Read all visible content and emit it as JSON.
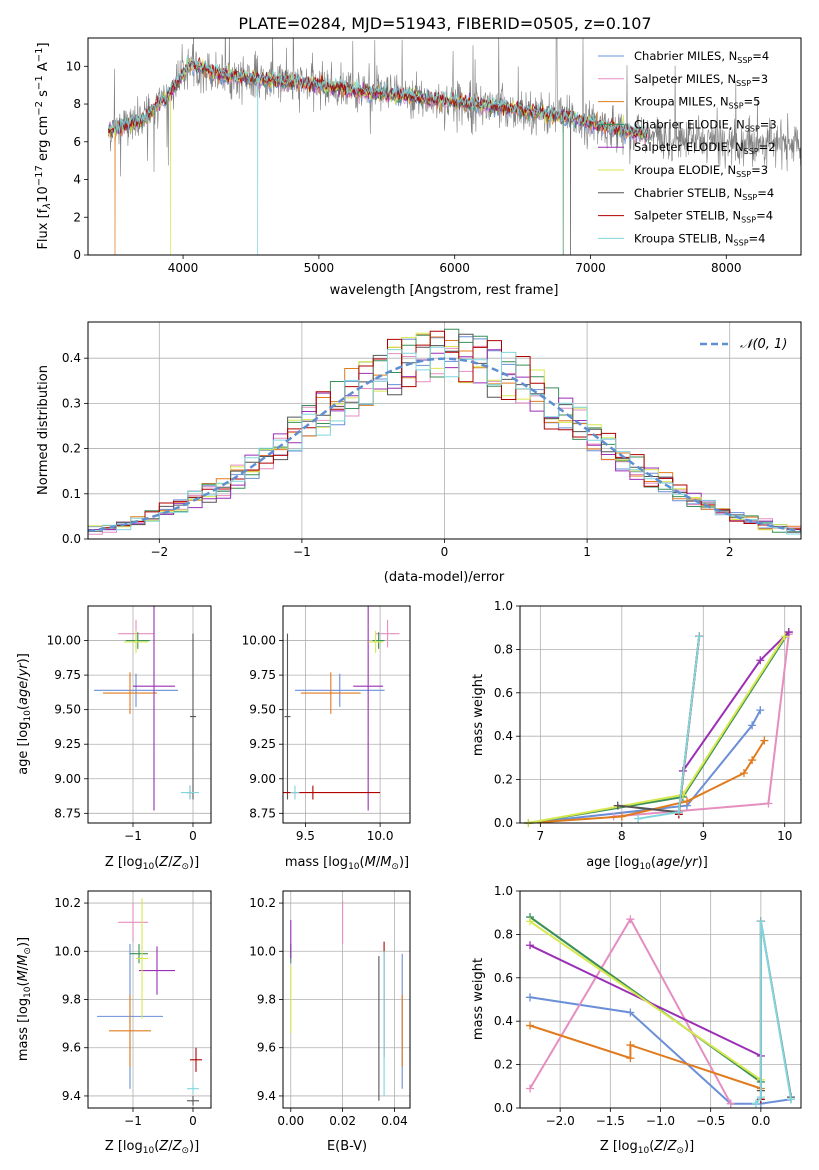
{
  "figure_title": "PLATE=0284, MJD=51943, FIBERID=0505, z=0.107",
  "colors": {
    "c1": "#6a8fd8",
    "c2": "#e58ec0",
    "c3": "#e07b1f",
    "c4": "#3a8f5a",
    "c5": "#9b2fb5",
    "c6": "#d7e84f",
    "c7": "#555555",
    "c8": "#b00000",
    "c9": "#7fd6dc",
    "data": "#808080",
    "normal": "#5f8fd0"
  },
  "legend_labels": {
    "s1": "Chabrier MILES, N",
    "s2": "Salpeter MILES, N",
    "s3": "Kroupa MILES, N",
    "s4": "Chabrier ELODIE, N",
    "s5": "Salpeter ELODIE, N",
    "s6": "Kroupa ELODIE, N",
    "s7": "Chabrier STELIB, N",
    "s8": "Salpeter STELIB, N",
    "s9": "Kroupa STELIB, N",
    "sub": "SSP",
    "n": [
      "=4",
      "=3",
      "=5",
      "=3",
      "=2",
      "=3",
      "=4",
      "=4",
      "=4"
    ]
  },
  "chart_data": [
    {
      "type": "line",
      "xlabel": "wavelength [Angstrom, rest frame]",
      "ylabel": "Flux [f_λ 10^-17 erg cm^-2 s^-1 A^-1]",
      "xlim": [
        3300,
        8550
      ],
      "ylim": [
        0,
        11.5
      ],
      "xticks": [
        "4000",
        "5000",
        "6000",
        "7000",
        "8000"
      ],
      "yticks": [
        "0",
        "2",
        "4",
        "6",
        "8",
        "10"
      ],
      "spectrum_shape": [
        [
          3450,
          6.6
        ],
        [
          3700,
          7.1
        ],
        [
          3900,
          8.6
        ],
        [
          4050,
          10.1
        ],
        [
          4300,
          9.5
        ],
        [
          4600,
          9.3
        ],
        [
          5000,
          9.0
        ],
        [
          5500,
          8.5
        ],
        [
          6000,
          8.1
        ],
        [
          6500,
          7.7
        ],
        [
          7000,
          7.0
        ],
        [
          7500,
          6.2
        ],
        [
          8000,
          6.0
        ],
        [
          8550,
          5.9
        ]
      ],
      "data_extends_to": 8550,
      "model_extends_to": 7420
    },
    {
      "type": "step",
      "xlabel": "(data-model)/error",
      "ylabel": "Normed distribution",
      "xlim": [
        -2.5,
        2.5
      ],
      "ylim": [
        0,
        0.48
      ],
      "xticks": [
        "−2",
        "−1",
        "0",
        "1",
        "2"
      ],
      "yticks": [
        "0.0",
        "0.1",
        "0.2",
        "0.3",
        "0.4"
      ],
      "legend": "𝒩(0, 1)",
      "bin_width": 0.1
    },
    {
      "type": "errorbar",
      "xlabel": "Z [log10(Z/Z⊙)]",
      "ylabel": "age  [log10(age/yr)]",
      "xlim": [
        -1.75,
        0.3
      ],
      "ylim": [
        8.68,
        10.25
      ],
      "xticks": [
        "−1",
        "0"
      ],
      "yticks": [
        "8.75",
        "9.00",
        "9.25",
        "9.50",
        "9.75",
        "10.00"
      ],
      "points": [
        {
          "c": "c1",
          "x": -0.95,
          "xe": 0.7,
          "y": 9.64,
          "ye": 0.12
        },
        {
          "c": "c2",
          "x": -0.95,
          "xe": 0.3,
          "y": 10.05,
          "ye": 0.1
        },
        {
          "c": "c3",
          "x": -1.05,
          "xe": 0.45,
          "y": 9.62,
          "ye": 0.15
        },
        {
          "c": "c4",
          "x": -0.92,
          "xe": 0.2,
          "y": 10.0,
          "ye": 0.06
        },
        {
          "c": "c5",
          "x": -0.65,
          "xe": 0.35,
          "y": 9.67,
          "ye": 0.9
        },
        {
          "c": "c6",
          "x": -0.95,
          "xe": 0.2,
          "y": 9.99,
          "ye": 0.08
        },
        {
          "c": "c7",
          "x": 0.0,
          "xe": 0.05,
          "y": 9.45,
          "ye": 0.6
        },
        {
          "c": "c8",
          "x": -0.05,
          "xe": 0.06,
          "y": 8.9,
          "ye": 0.05
        },
        {
          "c": "c9",
          "x": -0.05,
          "xe": 0.15,
          "y": 8.9,
          "ye": 0.05
        }
      ]
    },
    {
      "type": "errorbar",
      "xlabel": "mass [log10(M/M⊙)]",
      "ylabel": "",
      "xlim": [
        9.35,
        10.2
      ],
      "ylim": [
        8.68,
        10.25
      ],
      "xticks": [
        "9.5",
        "10.0"
      ],
      "yticks": [
        "8.75",
        "9.00",
        "9.25",
        "9.50",
        "9.75",
        "10.00"
      ],
      "points": [
        {
          "c": "c1",
          "x": 9.73,
          "xe": 0.3,
          "y": 9.64,
          "ye": 0.12
        },
        {
          "c": "c2",
          "x": 10.05,
          "xe": 0.08,
          "y": 10.05,
          "ye": 0.1
        },
        {
          "c": "c3",
          "x": 9.67,
          "xe": 0.2,
          "y": 9.62,
          "ye": 0.15
        },
        {
          "c": "c4",
          "x": 9.99,
          "xe": 0.04,
          "y": 10.0,
          "ye": 0.06
        },
        {
          "c": "c5",
          "x": 9.92,
          "xe": 0.1,
          "y": 9.67,
          "ye": 0.9
        },
        {
          "c": "c6",
          "x": 9.97,
          "xe": 0.05,
          "y": 9.99,
          "ye": 0.08
        },
        {
          "c": "c7",
          "x": 9.38,
          "xe": 0.02,
          "y": 9.45,
          "ye": 0.6
        },
        {
          "c": "c8",
          "x": 9.55,
          "xe": 0.45,
          "y": 8.9,
          "ye": 0.05
        },
        {
          "c": "c9",
          "x": 9.43,
          "xe": 0.03,
          "y": 8.9,
          "ye": 0.05
        }
      ]
    },
    {
      "type": "line",
      "xlabel": "age  [log10(age/yr)]",
      "ylabel": "mass weight",
      "xlim": [
        6.75,
        10.2
      ],
      "ylim": [
        0,
        1
      ],
      "xticks": [
        "7",
        "8",
        "9",
        "10"
      ],
      "yticks": [
        "0.0",
        "0.2",
        "0.4",
        "0.6",
        "0.8",
        "1.0"
      ],
      "series": [
        {
          "c": "c1",
          "x": [
            6.85,
            8.8,
            9.6,
            9.7
          ],
          "y": [
            0.0,
            0.08,
            0.45,
            0.52
          ]
        },
        {
          "c": "c2",
          "x": [
            7.9,
            9.8,
            10.05
          ],
          "y": [
            0.03,
            0.09,
            0.87
          ]
        },
        {
          "c": "c3",
          "x": [
            6.85,
            8.0,
            8.8,
            9.5,
            9.6,
            9.75
          ],
          "y": [
            0.0,
            0.03,
            0.1,
            0.23,
            0.29,
            0.38
          ]
        },
        {
          "c": "c4",
          "x": [
            6.85,
            8.75,
            10.05
          ],
          "y": [
            0.0,
            0.12,
            0.88
          ]
        },
        {
          "c": "c5",
          "x": [
            8.75,
            9.7,
            10.05
          ],
          "y": [
            0.24,
            0.75,
            0.88
          ]
        },
        {
          "c": "c6",
          "x": [
            6.85,
            8.75,
            10.0
          ],
          "y": [
            0.0,
            0.13,
            0.86
          ]
        },
        {
          "c": "c7",
          "x": [
            7.95,
            8.7,
            8.95
          ],
          "y": [
            0.08,
            0.05,
            0.86
          ]
        },
        {
          "c": "c8",
          "x": [
            8.7,
            8.95
          ],
          "y": [
            0.04,
            0.86
          ]
        },
        {
          "c": "c9",
          "x": [
            8.2,
            8.7,
            8.95
          ],
          "y": [
            0.02,
            0.05,
            0.86
          ]
        }
      ]
    },
    {
      "type": "errorbar",
      "xlabel": "Z [log10(Z/Z⊙)]",
      "ylabel": "mass [log10(M/M⊙)]",
      "xlim": [
        -1.75,
        0.3
      ],
      "ylim": [
        9.35,
        10.25
      ],
      "xticks": [
        "−1",
        "0"
      ],
      "yticks": [
        "9.4",
        "9.6",
        "9.8",
        "10.0",
        "10.2"
      ],
      "points": [
        {
          "c": "c1",
          "x": -1.05,
          "xe": 0.55,
          "y": 9.73,
          "ye": 0.3
        },
        {
          "c": "c2",
          "x": -1.0,
          "xe": 0.25,
          "y": 10.12,
          "ye": 0.08
        },
        {
          "c": "c3",
          "x": -1.05,
          "xe": 0.35,
          "y": 9.67,
          "ye": 0.15
        },
        {
          "c": "c4",
          "x": -0.9,
          "xe": 0.15,
          "y": 9.99,
          "ye": 0.04
        },
        {
          "c": "c5",
          "x": -0.6,
          "xe": 0.3,
          "y": 9.92,
          "ye": 0.1
        },
        {
          "c": "c6",
          "x": -0.85,
          "xe": 0.1,
          "y": 9.97,
          "ye": 0.25
        },
        {
          "c": "c7",
          "x": 0.0,
          "xe": 0.1,
          "y": 9.38,
          "ye": 0.02
        },
        {
          "c": "c8",
          "x": 0.05,
          "xe": 0.1,
          "y": 9.55,
          "ye": 0.05
        },
        {
          "c": "c9",
          "x": 0.0,
          "xe": 0.1,
          "y": 9.43,
          "ye": 0.02
        }
      ]
    },
    {
      "type": "errorbar",
      "xlabel": "E(B-V)",
      "ylabel": "",
      "xlim": [
        -0.003,
        0.046
      ],
      "ylim": [
        9.35,
        10.25
      ],
      "xticks": [
        "0.00",
        "0.02",
        "0.04"
      ],
      "yticks": [
        "9.4",
        "9.6",
        "9.8",
        "10.0",
        "10.2"
      ],
      "points": [
        {
          "c": "c1",
          "x": 0.043,
          "xe": 0.0,
          "y": 9.71,
          "ye": 0.28
        },
        {
          "c": "c2",
          "x": 0.02,
          "xe": 0.0,
          "y": 10.12,
          "ye": 0.09
        },
        {
          "c": "c3",
          "x": 0.043,
          "xe": 0.0,
          "y": 9.67,
          "ye": 0.15
        },
        {
          "c": "c4",
          "x": 0.0,
          "xe": 0.0,
          "y": 9.99,
          "ye": 0.04
        },
        {
          "c": "c5",
          "x": 0.0,
          "xe": 0.0,
          "y": 10.05,
          "ye": 0.08
        },
        {
          "c": "c6",
          "x": 0.0,
          "xe": 0.0,
          "y": 9.8,
          "ye": 0.14
        },
        {
          "c": "c7",
          "x": 0.034,
          "xe": 0.0,
          "y": 9.68,
          "ye": 0.3
        },
        {
          "c": "c8",
          "x": 0.036,
          "xe": 0.0,
          "y": 9.8,
          "ye": 0.24
        },
        {
          "c": "c9",
          "x": 0.036,
          "xe": 0.0,
          "y": 9.7,
          "ye": 0.3
        }
      ]
    },
    {
      "type": "line",
      "xlabel": "Z [log10(Z/Z⊙)]",
      "ylabel": "mass weight",
      "xlim": [
        -2.4,
        0.4
      ],
      "ylim": [
        0,
        1
      ],
      "xticks": [
        "−2.0",
        "−1.5",
        "−1.0",
        "−0.5",
        "0.0"
      ],
      "yticks": [
        "0.0",
        "0.2",
        "0.4",
        "0.6",
        "0.8",
        "1.0"
      ],
      "series": [
        {
          "c": "c1",
          "x": [
            -2.3,
            -1.3,
            -0.3,
            0.0,
            0.3
          ],
          "y": [
            0.51,
            0.44,
            0.02,
            0.02,
            0.04
          ]
        },
        {
          "c": "c2",
          "x": [
            -2.3,
            -1.3,
            -0.3
          ],
          "y": [
            0.09,
            0.87,
            0.02
          ]
        },
        {
          "c": "c3",
          "x": [
            -2.3,
            -1.3,
            -1.3,
            0.0
          ],
          "y": [
            0.38,
            0.23,
            0.29,
            0.09
          ]
        },
        {
          "c": "c4",
          "x": [
            -2.3,
            0.0
          ],
          "y": [
            0.88,
            0.12
          ]
        },
        {
          "c": "c5",
          "x": [
            -2.3,
            0.0
          ],
          "y": [
            0.75,
            0.24
          ]
        },
        {
          "c": "c6",
          "x": [
            -2.3,
            0.0
          ],
          "y": [
            0.86,
            0.13
          ]
        },
        {
          "c": "c7",
          "x": [
            0.0,
            0.0,
            0.3
          ],
          "y": [
            0.08,
            0.86,
            0.05
          ]
        },
        {
          "c": "c8",
          "x": [
            0.0,
            0.0
          ],
          "y": [
            0.04,
            0.86
          ]
        },
        {
          "c": "c9",
          "x": [
            -0.05,
            0.0,
            0.0,
            0.3
          ],
          "y": [
            0.02,
            0.05,
            0.86,
            0.04
          ]
        }
      ]
    }
  ]
}
